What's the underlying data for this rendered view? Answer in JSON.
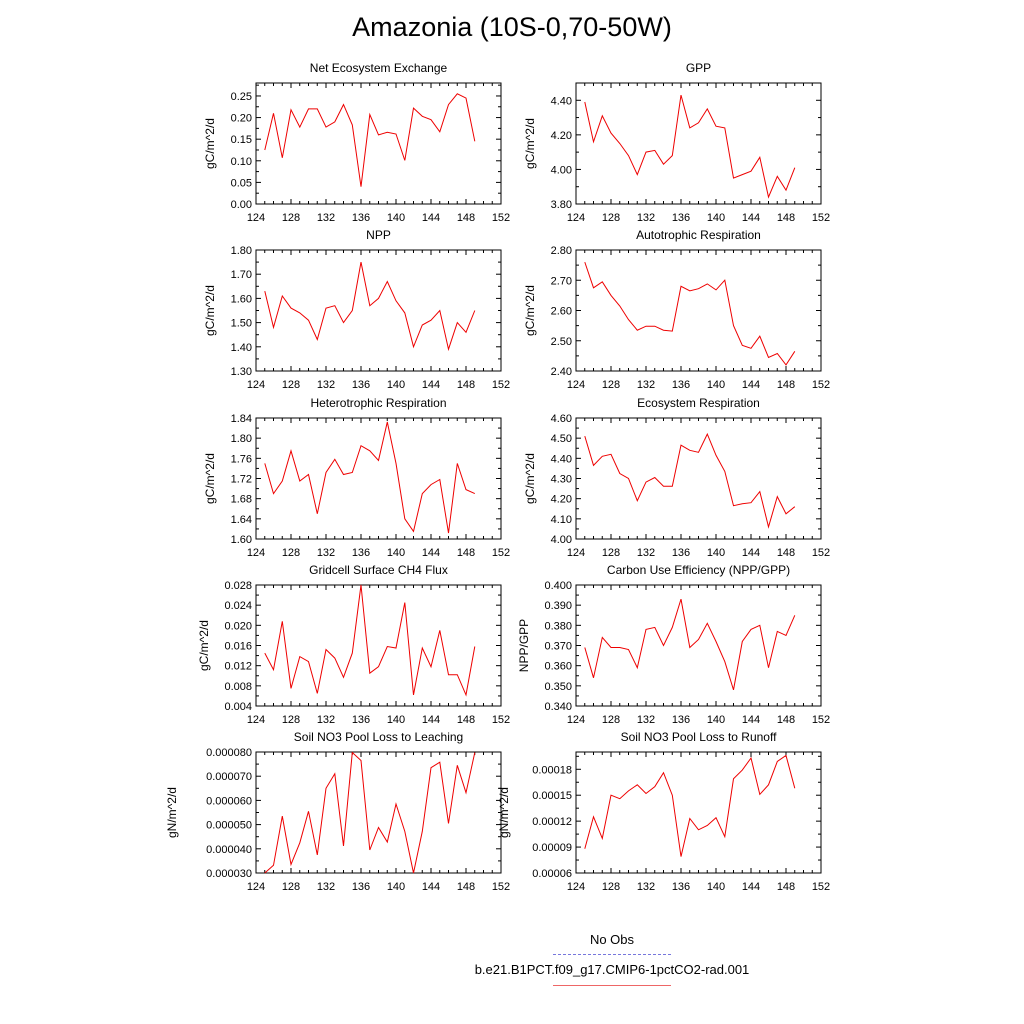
{
  "title": "Amazonia (10S-0,70-50W)",
  "legend": {
    "obs_label": "No Obs",
    "obs_color": "#7777dd",
    "model_label": "b.e21.B1PCT.f09_g17.CMIP6-1pctCO2-rad.001",
    "model_color": "#ee0000"
  },
  "chart_data": [
    {
      "type": "line",
      "title": "Net Ecosystem Exchange",
      "ylabel": "gC/m^2/d",
      "xlim": [
        124,
        152
      ],
      "xticks": [
        "124",
        "128",
        "132",
        "136",
        "140",
        "144",
        "148",
        "152"
      ],
      "ylim": [
        0,
        0.28
      ],
      "yticks": [
        "0.00",
        "0.05",
        "0.10",
        "0.15",
        "0.20",
        "0.25"
      ],
      "ytick_values": [
        0,
        0.05,
        0.1,
        0.15,
        0.2,
        0.25
      ],
      "x": [
        125,
        126,
        127,
        128,
        129,
        130,
        131,
        132,
        133,
        134,
        135,
        136,
        137,
        138,
        139,
        140,
        141,
        142,
        143,
        144,
        145,
        146,
        147,
        148,
        149
      ],
      "values": [
        0.125,
        0.21,
        0.107,
        0.218,
        0.178,
        0.22,
        0.22,
        0.178,
        0.19,
        0.23,
        0.183,
        0.04,
        0.207,
        0.16,
        0.166,
        0.162,
        0.101,
        0.222,
        0.203,
        0.195,
        0.167,
        0.23,
        0.255,
        0.245,
        0.145
      ]
    },
    {
      "type": "line",
      "title": "GPP",
      "ylabel": "gC/m^2/d",
      "xlim": [
        124,
        152
      ],
      "xticks": [
        "124",
        "128",
        "132",
        "136",
        "140",
        "144",
        "148",
        "152"
      ],
      "ylim": [
        3.8,
        4.5
      ],
      "yticks": [
        "3.80",
        "4.00",
        "4.20",
        "4.40"
      ],
      "ytick_values": [
        3.8,
        4.0,
        4.2,
        4.4
      ],
      "x": [
        125,
        126,
        127,
        128,
        129,
        130,
        131,
        132,
        133,
        134,
        135,
        136,
        137,
        138,
        139,
        140,
        141,
        142,
        143,
        144,
        145,
        146,
        147,
        148,
        149
      ],
      "values": [
        4.39,
        4.16,
        4.31,
        4.21,
        4.15,
        4.08,
        3.97,
        4.1,
        4.11,
        4.03,
        4.08,
        4.43,
        4.24,
        4.27,
        4.35,
        4.25,
        4.24,
        3.95,
        3.97,
        3.99,
        4.07,
        3.84,
        3.96,
        3.88,
        4.01
      ]
    },
    {
      "type": "line",
      "title": "NPP",
      "ylabel": "gC/m^2/d",
      "xlim": [
        124,
        152
      ],
      "xticks": [
        "124",
        "128",
        "132",
        "136",
        "140",
        "144",
        "148",
        "152"
      ],
      "ylim": [
        1.3,
        1.8
      ],
      "yticks": [
        "1.30",
        "1.40",
        "1.50",
        "1.60",
        "1.70",
        "1.80"
      ],
      "ytick_values": [
        1.3,
        1.4,
        1.5,
        1.6,
        1.7,
        1.8
      ],
      "x": [
        125,
        126,
        127,
        128,
        129,
        130,
        131,
        132,
        133,
        134,
        135,
        136,
        137,
        138,
        139,
        140,
        141,
        142,
        143,
        144,
        145,
        146,
        147,
        148,
        149
      ],
      "values": [
        1.63,
        1.48,
        1.61,
        1.56,
        1.54,
        1.51,
        1.43,
        1.56,
        1.57,
        1.5,
        1.55,
        1.75,
        1.57,
        1.6,
        1.67,
        1.59,
        1.54,
        1.4,
        1.49,
        1.51,
        1.55,
        1.39,
        1.5,
        1.46,
        1.55
      ]
    },
    {
      "type": "line",
      "title": "Autotrophic Respiration",
      "ylabel": "gC/m^2/d",
      "xlim": [
        124,
        152
      ],
      "xticks": [
        "124",
        "128",
        "132",
        "136",
        "140",
        "144",
        "148",
        "152"
      ],
      "ylim": [
        2.4,
        2.8
      ],
      "yticks": [
        "2.40",
        "2.50",
        "2.60",
        "2.70",
        "2.80"
      ],
      "ytick_values": [
        2.4,
        2.5,
        2.6,
        2.7,
        2.8
      ],
      "x": [
        125,
        126,
        127,
        128,
        129,
        130,
        131,
        132,
        133,
        134,
        135,
        136,
        137,
        138,
        139,
        140,
        141,
        142,
        143,
        144,
        145,
        146,
        147,
        148,
        149
      ],
      "values": [
        2.76,
        2.675,
        2.695,
        2.65,
        2.615,
        2.57,
        2.535,
        2.548,
        2.548,
        2.535,
        2.532,
        2.68,
        2.665,
        2.672,
        2.688,
        2.668,
        2.7,
        2.55,
        2.485,
        2.475,
        2.515,
        2.445,
        2.458,
        2.42,
        2.465
      ]
    },
    {
      "type": "line",
      "title": "Heterotrophic Respiration",
      "ylabel": "gC/m^2/d",
      "xlim": [
        124,
        152
      ],
      "xticks": [
        "124",
        "128",
        "132",
        "136",
        "140",
        "144",
        "148",
        "152"
      ],
      "ylim": [
        1.6,
        1.84
      ],
      "yticks": [
        "1.60",
        "1.64",
        "1.68",
        "1.72",
        "1.76",
        "1.80",
        "1.84"
      ],
      "ytick_values": [
        1.6,
        1.64,
        1.68,
        1.72,
        1.76,
        1.8,
        1.84
      ],
      "x": [
        125,
        126,
        127,
        128,
        129,
        130,
        131,
        132,
        133,
        134,
        135,
        136,
        137,
        138,
        139,
        140,
        141,
        142,
        143,
        144,
        145,
        146,
        147,
        148,
        149
      ],
      "values": [
        1.75,
        1.69,
        1.715,
        1.775,
        1.715,
        1.728,
        1.65,
        1.732,
        1.758,
        1.728,
        1.732,
        1.785,
        1.775,
        1.756,
        1.832,
        1.75,
        1.64,
        1.615,
        1.69,
        1.708,
        1.718,
        1.612,
        1.75,
        1.698,
        1.69
      ]
    },
    {
      "type": "line",
      "title": "Ecosystem Respiration",
      "ylabel": "gC/m^2/d",
      "xlim": [
        124,
        152
      ],
      "xticks": [
        "124",
        "128",
        "132",
        "136",
        "140",
        "144",
        "148",
        "152"
      ],
      "ylim": [
        4.0,
        4.6
      ],
      "yticks": [
        "4.00",
        "4.10",
        "4.20",
        "4.30",
        "4.40",
        "4.50",
        "4.60"
      ],
      "ytick_values": [
        4.0,
        4.1,
        4.2,
        4.3,
        4.4,
        4.5,
        4.6
      ],
      "x": [
        125,
        126,
        127,
        128,
        129,
        130,
        131,
        132,
        133,
        134,
        135,
        136,
        137,
        138,
        139,
        140,
        141,
        142,
        143,
        144,
        145,
        146,
        147,
        148,
        149
      ],
      "values": [
        4.51,
        4.365,
        4.41,
        4.42,
        4.325,
        4.3,
        4.19,
        4.282,
        4.305,
        4.262,
        4.262,
        4.465,
        4.44,
        4.43,
        4.52,
        4.415,
        4.335,
        4.165,
        4.175,
        4.18,
        4.235,
        4.06,
        4.21,
        4.125,
        4.16
      ]
    },
    {
      "type": "line",
      "title": "Gridcell Surface CH4 Flux",
      "ylabel": "gC/m^2/d",
      "xlim": [
        124,
        152
      ],
      "xticks": [
        "124",
        "128",
        "132",
        "136",
        "140",
        "144",
        "148",
        "152"
      ],
      "ylim": [
        0.004,
        0.028
      ],
      "yticks": [
        "0.004",
        "0.008",
        "0.012",
        "0.016",
        "0.020",
        "0.024",
        "0.028"
      ],
      "ytick_values": [
        0.004,
        0.008,
        0.012,
        0.016,
        0.02,
        0.024,
        0.028
      ],
      "x": [
        125,
        126,
        127,
        128,
        129,
        130,
        131,
        132,
        133,
        134,
        135,
        136,
        137,
        138,
        139,
        140,
        141,
        142,
        143,
        144,
        145,
        146,
        147,
        148,
        149
      ],
      "values": [
        0.0145,
        0.0112,
        0.0208,
        0.0075,
        0.0138,
        0.0128,
        0.0065,
        0.0152,
        0.0135,
        0.0097,
        0.0145,
        0.028,
        0.0105,
        0.0118,
        0.0158,
        0.0155,
        0.0245,
        0.0062,
        0.0155,
        0.0118,
        0.019,
        0.0102,
        0.0102,
        0.0062,
        0.0158
      ]
    },
    {
      "type": "line",
      "title": "Carbon Use Efficiency (NPP/GPP)",
      "ylabel": "NPP/GPP",
      "xlim": [
        124,
        152
      ],
      "xticks": [
        "124",
        "128",
        "132",
        "136",
        "140",
        "144",
        "148",
        "152"
      ],
      "ylim": [
        0.34,
        0.4
      ],
      "yticks": [
        "0.340",
        "0.350",
        "0.360",
        "0.370",
        "0.380",
        "0.390",
        "0.400"
      ],
      "ytick_values": [
        0.34,
        0.35,
        0.36,
        0.37,
        0.38,
        0.39,
        0.4
      ],
      "x": [
        125,
        126,
        127,
        128,
        129,
        130,
        131,
        132,
        133,
        134,
        135,
        136,
        137,
        138,
        139,
        140,
        141,
        142,
        143,
        144,
        145,
        146,
        147,
        148,
        149
      ],
      "values": [
        0.369,
        0.354,
        0.374,
        0.369,
        0.369,
        0.368,
        0.359,
        0.378,
        0.379,
        0.37,
        0.379,
        0.393,
        0.369,
        0.373,
        0.381,
        0.372,
        0.362,
        0.348,
        0.372,
        0.378,
        0.38,
        0.359,
        0.377,
        0.375,
        0.385
      ]
    },
    {
      "type": "line",
      "title": "Soil NO3 Pool Loss to Leaching",
      "ylabel": "gN/m^2/d",
      "xlim": [
        124,
        152
      ],
      "xticks": [
        "124",
        "128",
        "132",
        "136",
        "140",
        "144",
        "148",
        "152"
      ],
      "ylim": [
        3e-05,
        8e-05
      ],
      "yticks": [
        "0.000030",
        "0.000040",
        "0.000050",
        "0.000060",
        "0.000070",
        "0.000080"
      ],
      "ytick_values": [
        3e-05,
        4e-05,
        5e-05,
        6e-05,
        7e-05,
        8e-05
      ],
      "x": [
        125,
        126,
        127,
        128,
        129,
        130,
        131,
        132,
        133,
        134,
        135,
        136,
        137,
        138,
        139,
        140,
        141,
        142,
        143,
        144,
        145,
        146,
        147,
        148,
        149
      ],
      "values": [
        3e-05,
        3.32e-05,
        5.35e-05,
        3.35e-05,
        4.25e-05,
        5.55e-05,
        3.75e-05,
        6.5e-05,
        7.1e-05,
        4.12e-05,
        7.98e-05,
        7.65e-05,
        3.95e-05,
        4.88e-05,
        4.28e-05,
        5.85e-05,
        4.72e-05,
        3e-05,
        4.72e-05,
        7.35e-05,
        7.58e-05,
        5.05e-05,
        7.45e-05,
        6.32e-05,
        7.98e-05
      ]
    },
    {
      "type": "line",
      "title": "Soil NO3 Pool Loss to Runoff",
      "ylabel": "gN/m^2/d",
      "xlim": [
        124,
        152
      ],
      "xticks": [
        "124",
        "128",
        "132",
        "136",
        "140",
        "144",
        "148",
        "152"
      ],
      "ylim": [
        6e-05,
        0.0002
      ],
      "yticks": [
        "0.00006",
        "0.00009",
        "0.00012",
        "0.00015",
        "0.00018"
      ],
      "ytick_values": [
        6e-05,
        9e-05,
        0.00012,
        0.00015,
        0.00018
      ],
      "x": [
        125,
        126,
        127,
        128,
        129,
        130,
        131,
        132,
        133,
        134,
        135,
        136,
        137,
        138,
        139,
        140,
        141,
        142,
        143,
        144,
        145,
        146,
        147,
        148,
        149
      ],
      "values": [
        8.8e-05,
        0.000125,
        0.0001,
        0.00015,
        0.000146,
        0.000155,
        0.000162,
        0.000152,
        0.00016,
        0.000176,
        0.00015,
        7.9e-05,
        0.000123,
        0.00011,
        0.000115,
        0.000124,
        0.000102,
        0.000169,
        0.000179,
        0.000193,
        0.000151,
        0.000162,
        0.000189,
        0.000196,
        0.000158
      ]
    }
  ]
}
